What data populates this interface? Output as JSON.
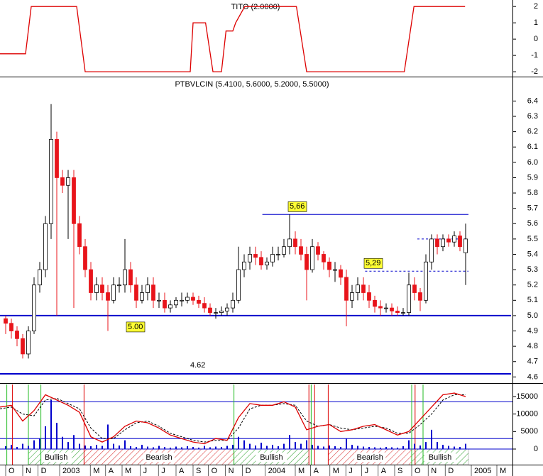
{
  "chart_data": [
    {
      "type": "line",
      "title": "TITO (2.0000)",
      "xlim": [
        0,
        90
      ],
      "ylim": [
        -2.3,
        2.4
      ],
      "yticks": [
        2,
        1,
        0,
        -1,
        -2
      ],
      "color": "#dd0000",
      "x": [
        0,
        4.5,
        5.5,
        13.5,
        15,
        33.5,
        34,
        36.2,
        37.5,
        39,
        39.8,
        41,
        41.5,
        43.1,
        52.2,
        54,
        71.2,
        72.9,
        81.9
      ],
      "values": [
        -0.9,
        -0.9,
        2,
        2,
        -2,
        -2,
        1,
        1,
        -2,
        -2,
        0.5,
        0.5,
        1,
        2,
        2,
        -2,
        -2,
        2,
        2
      ]
    },
    {
      "type": "candlestick",
      "title": "PTBVLCIN (5.4100, 5.6000, 5.2000, 5.5000)",
      "xlim": [
        0,
        90
      ],
      "ylim": [
        4.56,
        6.55
      ],
      "yticks": [
        4.6,
        4.7,
        4.8,
        4.9,
        {
          "value": 5,
          "label": "5.0"
        },
        5.1,
        5.2,
        5.3,
        5.4,
        5.5,
        5.6,
        5.7,
        5.8,
        5.9,
        {
          "value": 6,
          "label": "6.0"
        },
        6.1,
        6.2,
        6.3,
        6.4
      ],
      "up_color": "#ffffff",
      "down_color": "#e8141b",
      "level_color": "#0000cc",
      "x": [
        1,
        2,
        3,
        4,
        5,
        6,
        7,
        8,
        9,
        10,
        11,
        12,
        13,
        14,
        15,
        16,
        17,
        18,
        19,
        20,
        21,
        22,
        23,
        24,
        25,
        26,
        27,
        28,
        29,
        30,
        31,
        32,
        33,
        34,
        35,
        36,
        37,
        38,
        39,
        40,
        41,
        42,
        43,
        44,
        45,
        46,
        47,
        48,
        49,
        50,
        51,
        52,
        53,
        54,
        55,
        56,
        57,
        58,
        59,
        60,
        61,
        62,
        63,
        64,
        65,
        66,
        67,
        68,
        69,
        70,
        71,
        72,
        73,
        74,
        75,
        76,
        77,
        78,
        79,
        80,
        81,
        82
      ],
      "open": [
        4.98,
        4.95,
        4.9,
        4.85,
        4.75,
        4.9,
        5.2,
        5.3,
        5.6,
        6.15,
        5.9,
        5.85,
        5.9,
        5.6,
        5.45,
        5.3,
        5.15,
        5.2,
        5.15,
        5.1,
        5.2,
        5.2,
        5.3,
        5.2,
        5.1,
        5.15,
        5.2,
        5.1,
        5.1,
        5.05,
        5.07,
        5.1,
        5.1,
        5.12,
        5.1,
        5.08,
        5.05,
        5.02,
        5.02,
        5.03,
        5.05,
        5.1,
        5.3,
        5.35,
        5.4,
        5.38,
        5.33,
        5.35,
        5.4,
        5.4,
        5.45,
        5.5,
        5.45,
        5.4,
        5.3,
        5.45,
        5.4,
        5.35,
        5.3,
        5.3,
        5.25,
        5.1,
        5.15,
        5.2,
        5.15,
        5.1,
        5.06,
        5.05,
        5.05,
        5.03,
        5.02,
        5.02,
        5.2,
        5.15,
        5.1,
        5.35,
        5.5,
        5.45,
        5.5,
        5.48,
        5.52,
        5.41
      ],
      "high": [
        5.0,
        4.98,
        4.93,
        4.88,
        4.93,
        5.25,
        5.35,
        5.65,
        6.38,
        6.2,
        5.95,
        5.95,
        5.95,
        5.65,
        5.5,
        5.35,
        5.25,
        5.25,
        5.2,
        5.25,
        5.25,
        5.5,
        5.35,
        5.25,
        5.2,
        5.25,
        5.25,
        5.15,
        5.15,
        5.1,
        5.12,
        5.15,
        5.15,
        5.15,
        5.13,
        5.12,
        5.08,
        5.05,
        5.06,
        5.08,
        5.15,
        5.45,
        5.4,
        5.45,
        5.45,
        5.42,
        5.38,
        5.45,
        5.45,
        5.5,
        5.66,
        5.55,
        5.5,
        5.45,
        5.5,
        5.48,
        5.42,
        5.38,
        5.35,
        5.33,
        5.3,
        5.2,
        5.25,
        5.25,
        5.2,
        5.13,
        5.1,
        5.08,
        5.08,
        5.06,
        5.05,
        5.28,
        5.25,
        5.18,
        5.4,
        5.53,
        5.53,
        5.53,
        5.53,
        5.55,
        5.55,
        5.6
      ],
      "low": [
        4.88,
        4.85,
        4.8,
        4.72,
        4.72,
        4.88,
        5.15,
        5.25,
        5.5,
        5.0,
        5.8,
        5.5,
        5.05,
        5.4,
        5.25,
        5.1,
        5.1,
        5.1,
        4.9,
        5.08,
        5.15,
        5.15,
        5.15,
        5.05,
        5.08,
        5.1,
        5.05,
        5.05,
        5.02,
        5.02,
        5.05,
        5.06,
        5.08,
        5.07,
        5.05,
        5.02,
        5.0,
        4.98,
        5.0,
        5.0,
        5.02,
        5.08,
        5.25,
        5.3,
        5.33,
        5.3,
        5.3,
        5.32,
        5.36,
        5.38,
        5.4,
        5.4,
        5.36,
        5.1,
        5.28,
        5.36,
        5.3,
        5.25,
        5.22,
        5.2,
        4.93,
        5.05,
        5.1,
        5.1,
        5.05,
        5.02,
        5.0,
        5.02,
        5.0,
        5.0,
        5.0,
        5.0,
        5.1,
        5.03,
        5.08,
        5.3,
        5.4,
        5.42,
        5.45,
        5.45,
        5.42,
        5.2
      ],
      "close": [
        4.95,
        4.9,
        4.85,
        4.75,
        4.9,
        5.2,
        5.3,
        5.6,
        6.15,
        5.9,
        5.85,
        5.9,
        5.6,
        5.45,
        5.3,
        5.15,
        5.2,
        5.15,
        5.1,
        5.2,
        5.2,
        5.3,
        5.2,
        5.1,
        5.15,
        5.2,
        5.1,
        5.1,
        5.05,
        5.07,
        5.1,
        5.1,
        5.12,
        5.1,
        5.08,
        5.05,
        5.02,
        5.02,
        5.03,
        5.05,
        5.1,
        5.3,
        5.35,
        5.4,
        5.38,
        5.33,
        5.35,
        5.4,
        5.4,
        5.45,
        5.5,
        5.45,
        5.4,
        5.3,
        5.45,
        5.4,
        5.35,
        5.3,
        5.3,
        5.25,
        5.1,
        5.15,
        5.2,
        5.15,
        5.1,
        5.06,
        5.05,
        5.05,
        5.03,
        5.02,
        5.02,
        5.2,
        5.15,
        5.1,
        5.35,
        5.5,
        5.45,
        5.5,
        5.48,
        5.52,
        5.45,
        5.5
      ],
      "levels": [
        {
          "value": 5.66,
          "label": "5,66",
          "start": 46.2,
          "end": 82.5,
          "style": "solid"
        },
        {
          "value": 5,
          "label": "5.00",
          "start": 0,
          "end": 90,
          "style": "bold"
        },
        {
          "value": 4.62,
          "label": "4.62",
          "start": 0,
          "end": 90,
          "style": "bold"
        },
        {
          "value": 5.5,
          "start": 73.5,
          "end": 82.5,
          "style": "dashed"
        },
        {
          "value": 5.29,
          "label": "5,29",
          "start": 64.3,
          "end": 82.5,
          "style": "dashed"
        }
      ]
    },
    {
      "type": "oscillator",
      "xlim": [
        0,
        90
      ],
      "ylim": [
        -4460,
        18850
      ],
      "yticks": [
        0,
        5000,
        10000,
        15000
      ],
      "xticks": [
        {
          "value": 1.5,
          "label": "O"
        },
        {
          "value": 4.5,
          "label": "N"
        },
        {
          "value": 7.2,
          "label": "D"
        },
        {
          "value": 11,
          "label": "2003"
        },
        {
          "value": 16.4,
          "label": "M"
        },
        {
          "value": 19.1,
          "label": "A"
        },
        {
          "value": 22,
          "label": "M"
        },
        {
          "value": 25.2,
          "label": "J"
        },
        {
          "value": 28.4,
          "label": "J"
        },
        {
          "value": 31.5,
          "label": "A"
        },
        {
          "value": 34.5,
          "label": "S"
        },
        {
          "value": 37.2,
          "label": "O"
        },
        {
          "value": 40.2,
          "label": "N"
        },
        {
          "value": 43.2,
          "label": "D"
        },
        {
          "value": 47.2,
          "label": "2004"
        },
        {
          "value": 52.5,
          "label": "M"
        },
        {
          "value": 55.2,
          "label": "A"
        },
        {
          "value": 58.6,
          "label": "M"
        },
        {
          "value": 61.4,
          "label": "J"
        },
        {
          "value": 64.2,
          "label": "J"
        },
        {
          "value": 67.1,
          "label": "A"
        },
        {
          "value": 70,
          "label": "S"
        },
        {
          "value": 73,
          "label": "O"
        },
        {
          "value": 75.9,
          "label": "N"
        },
        {
          "value": 78.9,
          "label": "D"
        },
        {
          "value": 83.5,
          "label": "2005"
        },
        {
          "value": 88,
          "label": "M"
        }
      ],
      "x": [
        0,
        2,
        4,
        6,
        8,
        10,
        12,
        14,
        16,
        18,
        20,
        22,
        24,
        26,
        28,
        30,
        32,
        34,
        36,
        38,
        40,
        42,
        44,
        46,
        48,
        50,
        52,
        54,
        56,
        58,
        60,
        62,
        64,
        66,
        68,
        70,
        72,
        74,
        76,
        78,
        80,
        82
      ],
      "oscillator": {
        "color": "#dd0000",
        "values": [
          12000,
          12500,
          8000,
          11000,
          15500,
          14000,
          12500,
          10500,
          3500,
          2000,
          3500,
          6500,
          8000,
          7500,
          6000,
          4000,
          3000,
          2000,
          1500,
          3000,
          2500,
          9000,
          13000,
          12500,
          12500,
          13500,
          12000,
          5500,
          6500,
          7000,
          5000,
          5500,
          6500,
          7000,
          5500,
          4000,
          5000,
          8500,
          12000,
          15500,
          16000,
          15000
        ]
      },
      "signal": {
        "color": "#000000",
        "values": [
          11500,
          12000,
          10000,
          9500,
          14000,
          14500,
          13000,
          11500,
          6000,
          3000,
          3000,
          5500,
          7500,
          8000,
          6500,
          4500,
          3500,
          2500,
          2000,
          2500,
          2500,
          6000,
          11500,
          12500,
          12500,
          13000,
          12500,
          8000,
          6500,
          7000,
          6000,
          5500,
          6000,
          6500,
          6000,
          4500,
          4500,
          7000,
          10000,
          14000,
          15500,
          15500
        ]
      },
      "volume": {
        "color": "#0000cc",
        "x": [
          1,
          2,
          3,
          4,
          5,
          6,
          7,
          8,
          9,
          10,
          11,
          12,
          13,
          14,
          15,
          16,
          17,
          18,
          19,
          20,
          21,
          22,
          23,
          24,
          25,
          26,
          27,
          28,
          29,
          30,
          31,
          32,
          33,
          34,
          35,
          36,
          37,
          38,
          39,
          40,
          41,
          42,
          43,
          44,
          45,
          46,
          47,
          48,
          49,
          50,
          51,
          52,
          53,
          54,
          55,
          56,
          57,
          58,
          59,
          60,
          61,
          62,
          63,
          64,
          65,
          66,
          67,
          68,
          69,
          70,
          71,
          72,
          73,
          74,
          75,
          76,
          77,
          78,
          79,
          80,
          81,
          82
        ],
        "values": [
          800,
          1200,
          600,
          1500,
          900,
          2500,
          3000,
          6500,
          14000,
          7500,
          3500,
          2000,
          4000,
          1500,
          1000,
          800,
          1200,
          900,
          7000,
          1500,
          1000,
          2500,
          800,
          600,
          1200,
          700,
          500,
          900,
          600,
          400,
          700,
          500,
          800,
          600,
          400,
          900,
          500,
          700,
          600,
          900,
          1200,
          3500,
          2500,
          1500,
          1000,
          1800,
          900,
          1200,
          800,
          1500,
          4000,
          2000,
          1500,
          2500,
          1200,
          900,
          700,
          1000,
          800,
          600,
          3000,
          1200,
          900,
          700,
          600,
          500,
          400,
          600,
          500,
          400,
          800,
          2500,
          1500,
          1000,
          2000,
          5500,
          2000,
          1200,
          900,
          700,
          600,
          1500
        ]
      },
      "lines": [
        13500,
        3000,
        0
      ],
      "line_color": "#0000cc",
      "buy_signals": [
        1.2,
        5,
        7.2,
        41.2,
        54.8,
        72.5,
        74.5
      ],
      "buy_color": "#22bb22",
      "sell_signals": [
        2.2,
        14.8,
        54.4,
        55.4,
        57.8,
        73.1
      ],
      "sell_color": "#dd0000",
      "regions": [
        {
          "label": "Bullish",
          "start": 5,
          "end": 14.8
        },
        {
          "label": "Bearish",
          "start": 14.8,
          "end": 41.2
        },
        {
          "label": "Bullish",
          "start": 41.2,
          "end": 54.4
        },
        {
          "label": "Bearish",
          "start": 57.8,
          "end": 72.5
        },
        {
          "label": "Bullish",
          "start": 72.5,
          "end": 82.5
        }
      ]
    }
  ]
}
